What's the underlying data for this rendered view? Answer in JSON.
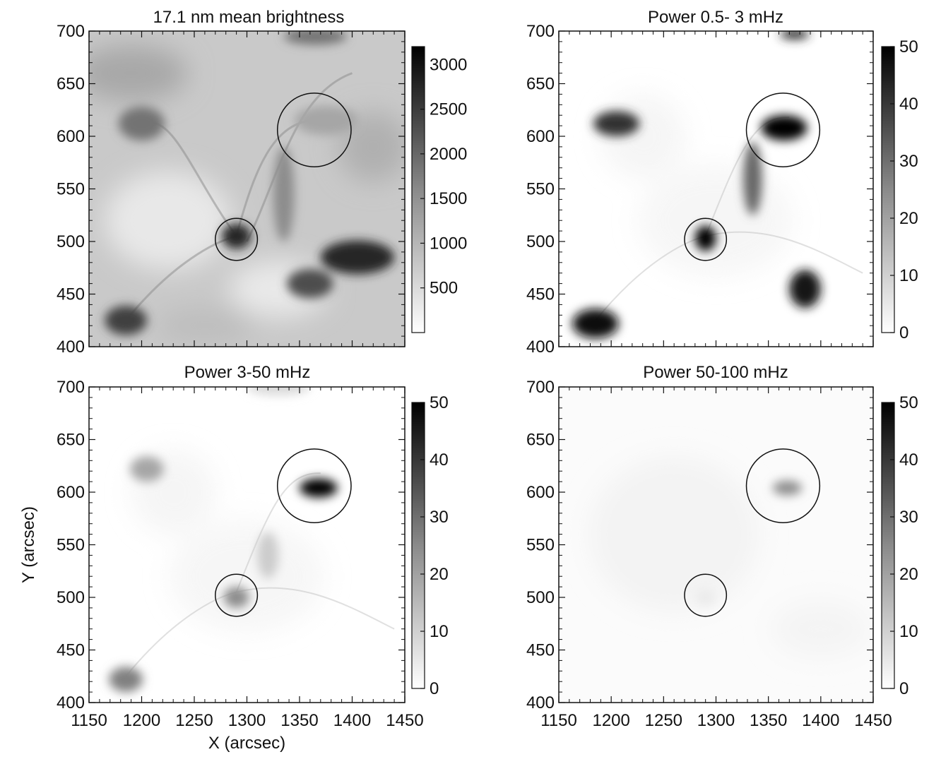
{
  "chart_data": [
    {
      "type": "heatmap",
      "title": "17.1 nm mean brightness",
      "x_ticks": [
        1150,
        1200,
        1250,
        1300,
        1350,
        1400,
        1450
      ],
      "y_ticks": [
        400,
        450,
        500,
        550,
        600,
        650,
        700
      ],
      "xlim": [
        1150,
        1450
      ],
      "ylim": [
        400,
        700
      ],
      "show_x_tick_labels": false,
      "show_y_tick_labels": true,
      "xlabel": "",
      "ylabel": "",
      "colorbar": {
        "ticks": [
          500,
          1000,
          1500,
          2000,
          2500,
          3000
        ],
        "range": [
          0,
          3200
        ],
        "colormap": "gray-reversed"
      },
      "circles": [
        {
          "x": 1364,
          "y": 606,
          "r": 35
        },
        {
          "x": 1290,
          "y": 502,
          "r": 20
        }
      ],
      "style": "brightness",
      "features": [
        {
          "x": 1200,
          "y": 612,
          "sx": 22,
          "sy": 16,
          "level": 0.55
        },
        {
          "x": 1375,
          "y": 615,
          "sx": 30,
          "sy": 14,
          "level": 0.35
        },
        {
          "x": 1290,
          "y": 505,
          "sx": 14,
          "sy": 12,
          "level": 0.85
        },
        {
          "x": 1405,
          "y": 485,
          "sx": 35,
          "sy": 16,
          "level": 0.85
        },
        {
          "x": 1360,
          "y": 460,
          "sx": 22,
          "sy": 14,
          "level": 0.7
        },
        {
          "x": 1185,
          "y": 425,
          "sx": 20,
          "sy": 14,
          "level": 0.75
        },
        {
          "x": 1335,
          "y": 545,
          "sx": 10,
          "sy": 45,
          "level": 0.45
        },
        {
          "x": 1365,
          "y": 695,
          "sx": 30,
          "sy": 8,
          "level": 0.55
        }
      ]
    },
    {
      "type": "heatmap",
      "title": "Power 0.5- 3 mHz",
      "x_ticks": [
        1150,
        1200,
        1250,
        1300,
        1350,
        1400,
        1450
      ],
      "y_ticks": [
        400,
        450,
        500,
        550,
        600,
        650,
        700
      ],
      "xlim": [
        1150,
        1450
      ],
      "ylim": [
        400,
        700
      ],
      "show_x_tick_labels": false,
      "show_y_tick_labels": true,
      "xlabel": "",
      "ylabel": "",
      "colorbar": {
        "ticks": [
          0,
          10,
          20,
          30,
          40,
          50
        ],
        "range": [
          0,
          50
        ],
        "colormap": "gray-reversed"
      },
      "circles": [
        {
          "x": 1364,
          "y": 606,
          "r": 35
        },
        {
          "x": 1290,
          "y": 502,
          "r": 20
        }
      ],
      "style": "power",
      "features": [
        {
          "x": 1365,
          "y": 608,
          "sx": 22,
          "sy": 12,
          "level": 1.0
        },
        {
          "x": 1290,
          "y": 503,
          "sx": 10,
          "sy": 12,
          "level": 1.0
        },
        {
          "x": 1205,
          "y": 612,
          "sx": 22,
          "sy": 12,
          "level": 0.8
        },
        {
          "x": 1185,
          "y": 422,
          "sx": 22,
          "sy": 14,
          "level": 0.95
        },
        {
          "x": 1385,
          "y": 455,
          "sx": 15,
          "sy": 18,
          "level": 0.9
        },
        {
          "x": 1335,
          "y": 560,
          "sx": 9,
          "sy": 35,
          "level": 0.6
        },
        {
          "x": 1375,
          "y": 697,
          "sx": 14,
          "sy": 5,
          "level": 0.8
        }
      ]
    },
    {
      "type": "heatmap",
      "title": "Power  3-50 mHz",
      "x_ticks": [
        1150,
        1200,
        1250,
        1300,
        1350,
        1400,
        1450
      ],
      "y_ticks": [
        400,
        450,
        500,
        550,
        600,
        650,
        700
      ],
      "xlim": [
        1150,
        1450
      ],
      "ylim": [
        400,
        700
      ],
      "show_x_tick_labels": true,
      "show_y_tick_labels": true,
      "xlabel": "X (arcsec)",
      "ylabel": "Y (arcsec)",
      "colorbar": {
        "ticks": [
          0,
          10,
          20,
          30,
          40,
          50
        ],
        "range": [
          0,
          50
        ],
        "colormap": "gray-reversed"
      },
      "circles": [
        {
          "x": 1364,
          "y": 606,
          "r": 35
        },
        {
          "x": 1290,
          "y": 502,
          "r": 20
        }
      ],
      "style": "power",
      "features": [
        {
          "x": 1368,
          "y": 604,
          "sx": 18,
          "sy": 9,
          "level": 1.0
        },
        {
          "x": 1290,
          "y": 500,
          "sx": 12,
          "sy": 10,
          "level": 0.45
        },
        {
          "x": 1205,
          "y": 622,
          "sx": 16,
          "sy": 12,
          "level": 0.35
        },
        {
          "x": 1185,
          "y": 422,
          "sx": 16,
          "sy": 12,
          "level": 0.5
        },
        {
          "x": 1320,
          "y": 540,
          "sx": 10,
          "sy": 22,
          "level": 0.2
        },
        {
          "x": 1330,
          "y": 700,
          "sx": 30,
          "sy": 8,
          "level": 0.15
        }
      ]
    },
    {
      "type": "heatmap",
      "title": "Power 50-100 mHz",
      "x_ticks": [
        1150,
        1200,
        1250,
        1300,
        1350,
        1400,
        1450
      ],
      "y_ticks": [
        400,
        450,
        500,
        550,
        600,
        650,
        700
      ],
      "xlim": [
        1150,
        1450
      ],
      "ylim": [
        400,
        700
      ],
      "show_x_tick_labels": true,
      "show_y_tick_labels": true,
      "xlabel": "",
      "ylabel": "",
      "colorbar": {
        "ticks": [
          0,
          10,
          20,
          30,
          40,
          50
        ],
        "range": [
          0,
          50
        ],
        "colormap": "gray-reversed"
      },
      "circles": [
        {
          "x": 1364,
          "y": 606,
          "r": 35
        },
        {
          "x": 1290,
          "y": 502,
          "r": 20
        }
      ],
      "style": "faint",
      "features": [
        {
          "x": 1368,
          "y": 604,
          "sx": 14,
          "sy": 7,
          "level": 0.45
        },
        {
          "x": 1290,
          "y": 500,
          "sx": 10,
          "sy": 8,
          "level": 0.08
        }
      ]
    }
  ]
}
